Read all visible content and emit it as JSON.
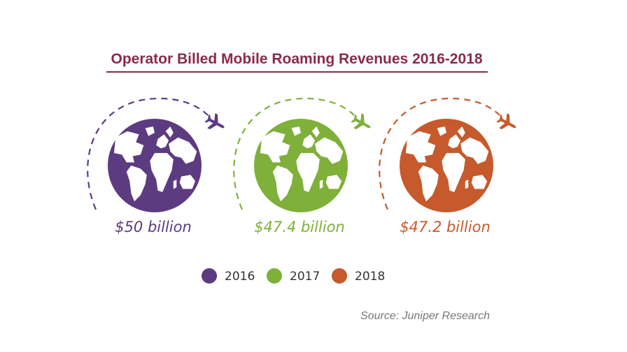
{
  "chart_data": {
    "type": "pictograph",
    "title": "Operator Billed Mobile Roaming Revenues 2016-2018",
    "categories": [
      "2016",
      "2017",
      "2018"
    ],
    "values": [
      50,
      47.4,
      47.2
    ],
    "value_labels": [
      "$50 billion",
      "$47.4 billion",
      "$47.2 billion"
    ],
    "unit": "billion USD",
    "legend": {
      "entries": [
        "2016",
        "2017",
        "2018"
      ],
      "placement": "bottom"
    },
    "source": "Source: Juniper Research",
    "colors": [
      "#5c3b80",
      "#7fb03a",
      "#c65a2c"
    ],
    "title_color": "#8a2a4c",
    "icons": [
      "globe-icon",
      "airplane-icon",
      "dashed-flight-path"
    ]
  }
}
